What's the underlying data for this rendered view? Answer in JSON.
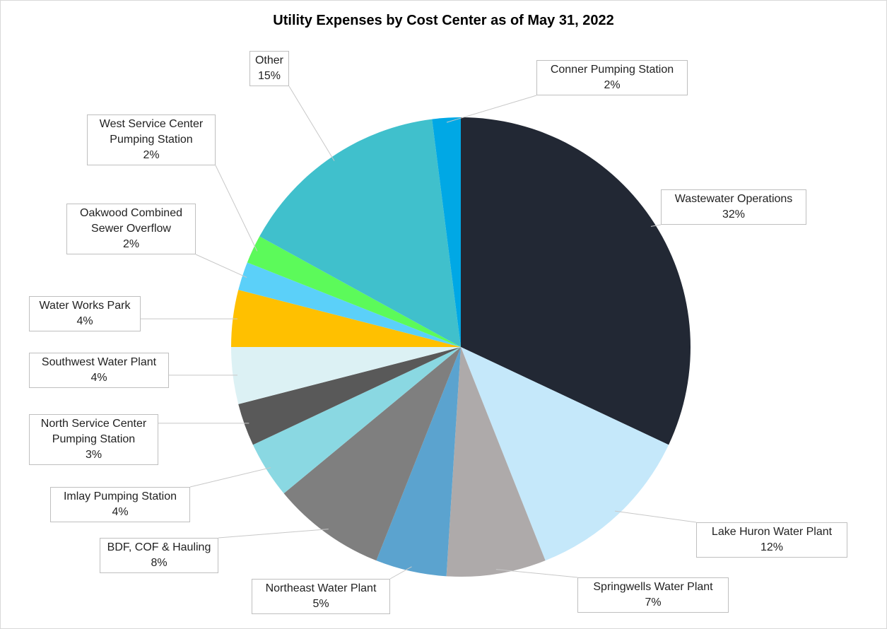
{
  "chart_data": {
    "type": "pie",
    "title": "Utility Expenses by Cost Center as of May 31, 2022",
    "categories": [
      "Wastewater Operations",
      "Lake Huron Water Plant",
      "Springwells Water Plant",
      "Northeast Water Plant",
      "BDF, COF & Hauling",
      "Imlay Pumping Station",
      "North Service Center Pumping Station",
      "Southwest Water Plant",
      "Water Works Park",
      "Oakwood Combined Sewer Overflow",
      "West Service Center Pumping Station",
      "Other",
      "Conner Pumping Station"
    ],
    "values": [
      32,
      12,
      7,
      5,
      8,
      4,
      3,
      4,
      4,
      2,
      2,
      15,
      2
    ],
    "value_labels": [
      "32%",
      "12%",
      "7%",
      "5%",
      "8%",
      "4%",
      "3%",
      "4%",
      "4%",
      "2%",
      "2%",
      "15%",
      "2%"
    ],
    "colors": [
      "#222834",
      "#c5e8fa",
      "#aeaaaa",
      "#5ba3cf",
      "#7f7f7f",
      "#8ad8e2",
      "#595959",
      "#dcf1f4",
      "#ffc000",
      "#5bd0f9",
      "#5cfa5a",
      "#40c0cc",
      "#00a8e5"
    ]
  }
}
